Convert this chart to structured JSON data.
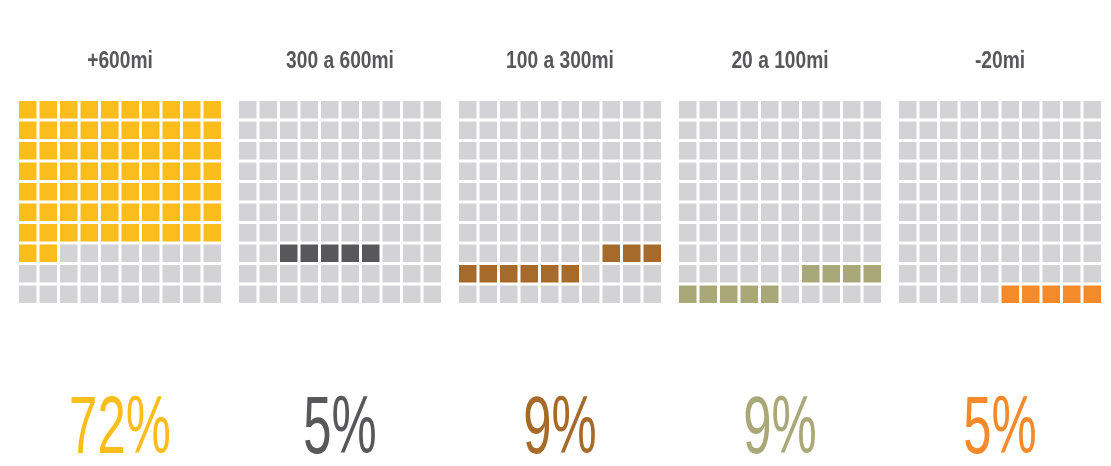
{
  "chart_data": {
    "type": "other",
    "categories": [
      "+600mi",
      "300 a 600mi",
      "100 a 300mi",
      "20 a 100mi",
      "-20mi"
    ],
    "values": [
      72,
      5,
      9,
      9,
      5
    ],
    "value_labels": [
      "72%",
      "5%",
      "9%",
      "9%",
      "5%"
    ],
    "colors": [
      "#fbbd1b",
      "#58585a",
      "#a66b2b",
      "#a9a878",
      "#f58a2b"
    ]
  }
}
